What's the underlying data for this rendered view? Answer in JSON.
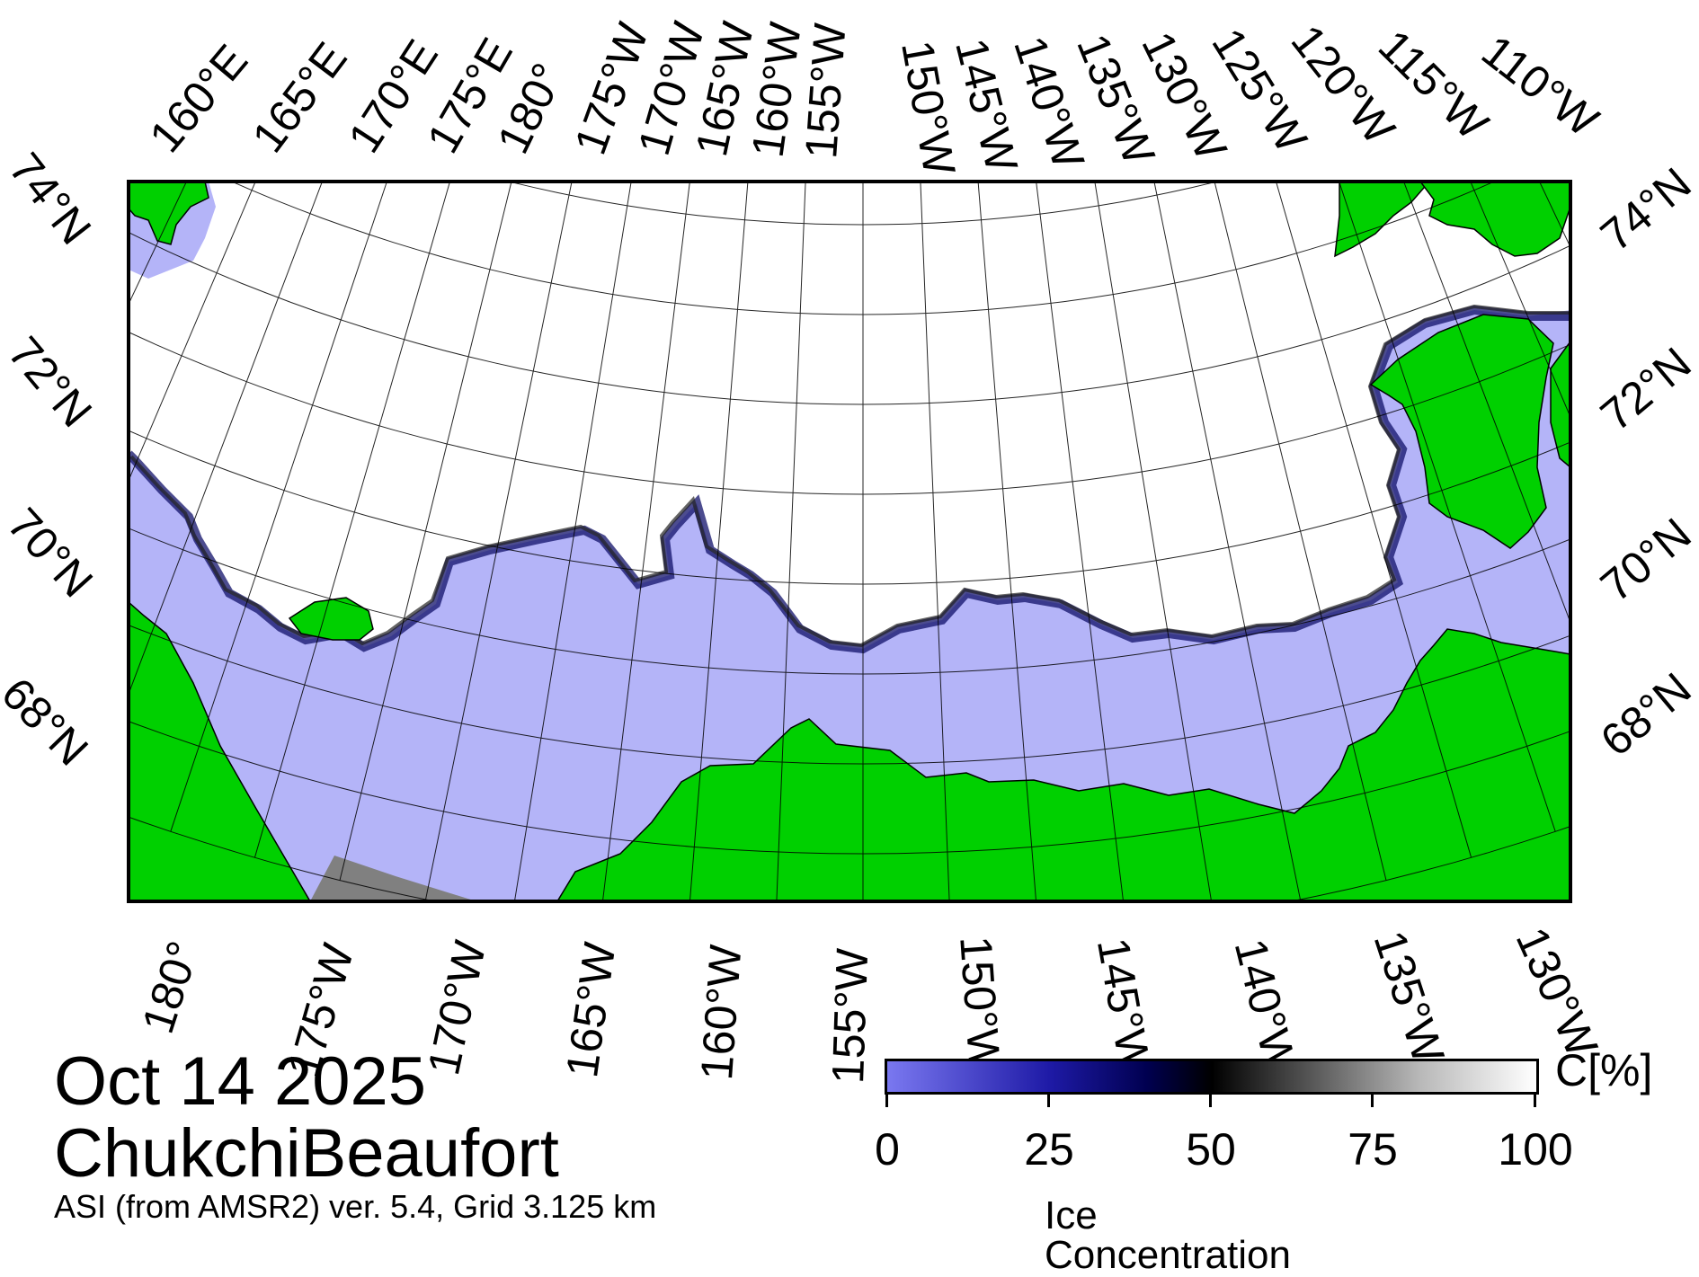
{
  "map": {
    "title_date": "Oct 14 2025",
    "region": "ChukchiBeaufort",
    "source": "ASI (from AMSR2) ver. 5.4,  Grid 3.125 km",
    "top_longitude_labels": [
      "160°E",
      "165°E",
      "170°E",
      "175°E",
      "180°",
      "175°W",
      "170°W",
      "165°W",
      "160°W",
      "155°W",
      "150°W",
      "145°W",
      "140°W",
      "135°W",
      "130°W",
      "125°W",
      "120°W",
      "115°W",
      "110°W"
    ],
    "bottom_longitude_labels": [
      "180°",
      "175°W",
      "170°W",
      "165°W",
      "160°W",
      "155°W",
      "150°W",
      "145°W",
      "140°W",
      "135°W",
      "130°W"
    ],
    "left_latitude_labels": [
      "74°N",
      "72°N",
      "70°N",
      "68°N"
    ],
    "right_latitude_labels": [
      "74°N",
      "72°N",
      "70°N",
      "68°N"
    ],
    "colors": {
      "land": "#00d000",
      "open_water": "#b4b4f8",
      "ice": "#ffffff",
      "no_data": "#808080"
    }
  },
  "legend": {
    "title": "Ice Concentration",
    "unit": "C[%]",
    "ticks": [
      "0",
      "25",
      "50",
      "75",
      "100"
    ],
    "range": [
      0,
      100
    ]
  }
}
